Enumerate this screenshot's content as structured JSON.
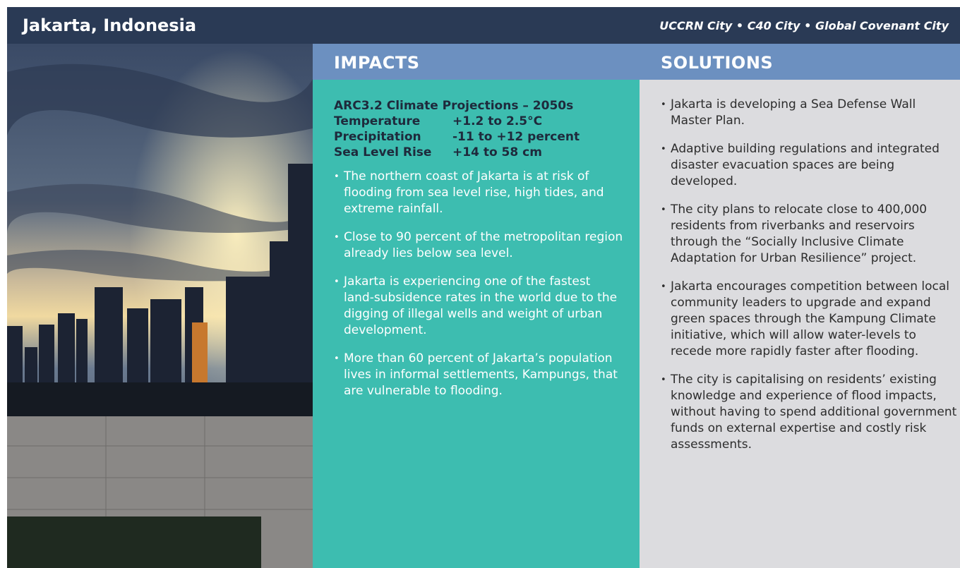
{
  "header": {
    "title": "Jakarta, Indonesia",
    "subtitle": "UCCRN City • C40 City • Global Covenant City"
  },
  "impacts": {
    "heading": "IMPACTS",
    "projections": {
      "title": "ARC3.2 Climate Projections – 2050s",
      "rows": [
        [
          "Temperature",
          "+1.2 to 2.5°C"
        ],
        [
          "Precipitation",
          "-11 to +12 percent"
        ],
        [
          "Sea Level Rise",
          "+14 to 58 cm"
        ]
      ]
    },
    "bullets": [
      "The northern coast of Jakarta is at risk of flooding from sea level rise, high tides, and extreme rainfall.",
      "Close to 90 percent of the metropolitan region already lies below sea level.",
      "Jakarta is experiencing one of the fastest land-subsidence rates in the world due to the digging of illegal wells and weight of urban development.",
      "More than 60 percent of Jakarta’s population lives in informal settlements, Kampungs, that are vulnerable to flooding."
    ]
  },
  "solutions": {
    "heading": "SOLUTIONS",
    "bullets": [
      "Jakarta is developing a Sea Defense Wall Master Plan.",
      "Adaptive building regulations and integrated disaster evacuation spaces are being developed.",
      "The city plans to relocate close to 400,000 residents from riverbanks and reservoirs through the “Socially Inclusive Climate Adaptation for Urban Resilience” project.",
      "Jakarta encourages competition between local community leaders to upgrade and expand green spaces through the Kampung Climate initiative, which will allow water-levels to recede more rapidly faster after flooding.",
      "The city is capitalising on residents’ existing knowledge and experience of flood impacts, without having to spend additional government funds on external expertise and costly risk assessments."
    ]
  }
}
